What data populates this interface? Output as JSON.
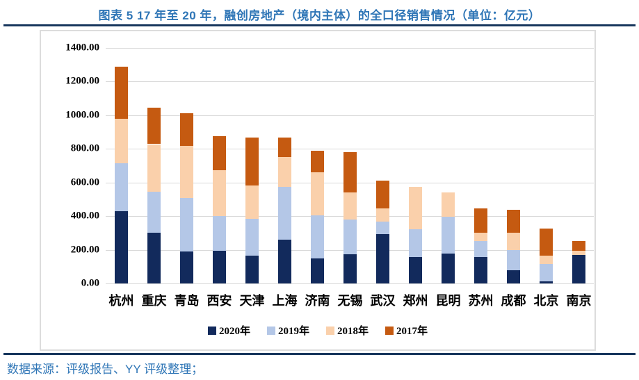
{
  "header": {
    "title": "图表 5 17 年至 20 年，融创房地产（境内主体）的全口径销售情况（单位：亿元）"
  },
  "footer": {
    "source": "数据来源：评级报告、YY 评级整理；"
  },
  "colors": {
    "navy": "#122A5C",
    "light_blue": "#B4C7E7",
    "peach": "#FAD0AB",
    "orange": "#C55A11",
    "title_blue": "#2E75B6",
    "rule_navy": "#17365D",
    "gridline": "#D9D9D9"
  },
  "chart_data": {
    "type": "bar",
    "stacked": true,
    "title": "图表 5 17 年至 20 年，融创房地产（境内主体）的全口径销售情况（单位：亿元）",
    "unit": "亿元",
    "categories": [
      "杭州",
      "重庆",
      "青岛",
      "西安",
      "天津",
      "上海",
      "济南",
      "无锡",
      "武汉",
      "郑州",
      "昆明",
      "苏州",
      "成都",
      "北京",
      "南京"
    ],
    "series": [
      {
        "name": "2020年",
        "color_key": "navy",
        "values": [
          430,
          300,
          190,
          195,
          165,
          262,
          148,
          175,
          295,
          158,
          178,
          155,
          77,
          14,
          170
        ]
      },
      {
        "name": "2019年",
        "color_key": "light_blue",
        "values": [
          283,
          247,
          317,
          205,
          218,
          310,
          255,
          205,
          72,
          165,
          218,
          97,
          120,
          100,
          0
        ]
      },
      {
        "name": "2018年",
        "color_key": "peach",
        "values": [
          267,
          281,
          312,
          272,
          200,
          178,
          257,
          163,
          77,
          250,
          147,
          50,
          104,
          52,
          25
        ]
      },
      {
        "name": "2017年",
        "color_key": "orange",
        "values": [
          310,
          217,
          193,
          204,
          283,
          116,
          128,
          238,
          166,
          0,
          0,
          145,
          136,
          161,
          57
        ]
      }
    ],
    "totals": [
      1290,
      1045,
      1012,
      876,
      866,
      866,
      788,
      781,
      610,
      573,
      543,
      447,
      437,
      327,
      252
    ],
    "y_ticks": [
      "1400.00",
      "1200.00",
      "1000.00",
      "800.00",
      "600.00",
      "400.00",
      "200.00",
      "0.00"
    ],
    "ylim": [
      0,
      1400
    ],
    "grid": true,
    "legend_position": "bottom"
  }
}
